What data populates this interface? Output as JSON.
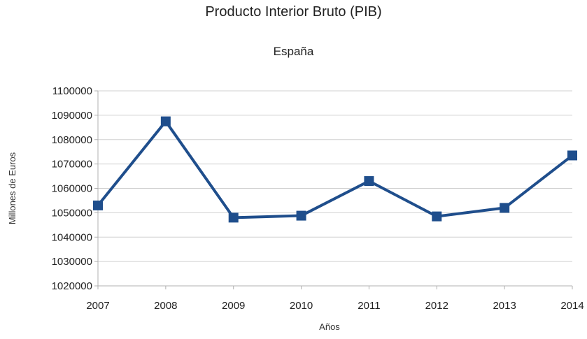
{
  "chart_data": {
    "type": "line",
    "title": "Producto Interior Bruto (PIB)",
    "subtitle": "España",
    "xlabel": "Años",
    "ylabel": "Millones de Euros",
    "categories": [
      "2007",
      "2008",
      "2009",
      "2010",
      "2011",
      "2012",
      "2013",
      "2014"
    ],
    "series": [
      {
        "values": [
          1053000,
          1087500,
          1048000,
          1048800,
          1063000,
          1048500,
          1052000,
          1073500
        ]
      }
    ],
    "ylim": [
      1020000,
      1100000
    ],
    "yticks": [
      1100000,
      1090000,
      1080000,
      1070000,
      1060000,
      1050000,
      1040000,
      1030000,
      1020000
    ],
    "grid": true,
    "legend": "none",
    "colors": {
      "line": "#1f4e8c",
      "marker": "#1f4e8c",
      "grid": "#d0d0d0",
      "axis": "#b0b0b0"
    }
  }
}
